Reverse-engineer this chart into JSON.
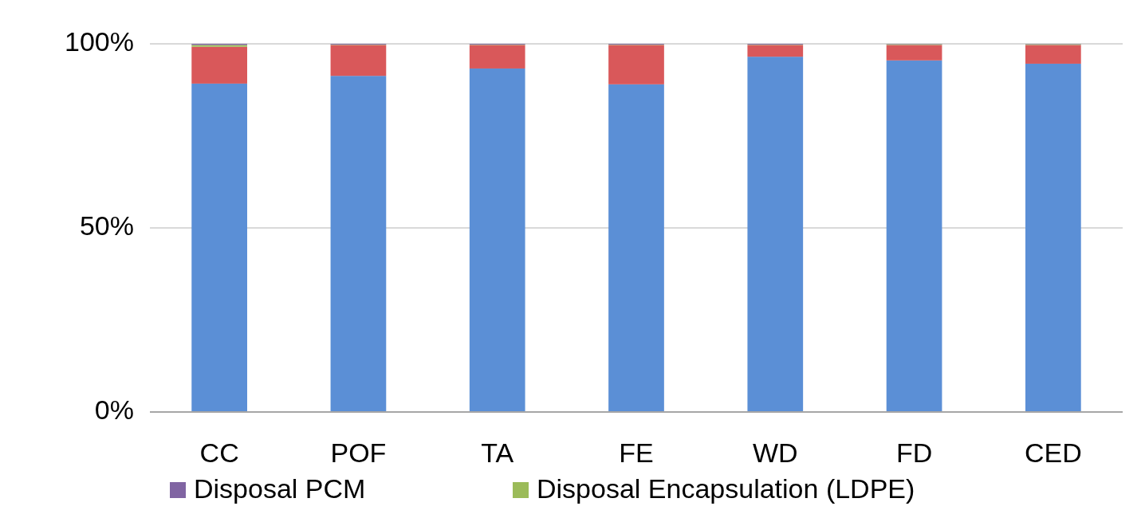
{
  "chart_data": {
    "type": "bar",
    "stacked": true,
    "categories": [
      "CC",
      "POF",
      "TA",
      "FE",
      "WD",
      "FD",
      "CED"
    ],
    "series": [
      {
        "color": "#5b8fd6",
        "values": [
          89.2,
          91.3,
          93.3,
          89.0,
          96.5,
          95.5,
          94.6
        ]
      },
      {
        "color": "#d9585a",
        "values": [
          10.0,
          8.4,
          6.4,
          10.7,
          3.2,
          4.2,
          5.1
        ]
      },
      {
        "name": "Disposal Encapsulation  (LDPE)",
        "color": "#9bbb59",
        "values": [
          0.5,
          0.1,
          0.1,
          0.1,
          0.1,
          0.2,
          0.2
        ]
      },
      {
        "name": "Disposal PCM",
        "color": "#8064a2",
        "values": [
          0.3,
          0.2,
          0.2,
          0.2,
          0.2,
          0.1,
          0.1
        ]
      }
    ],
    "ylim": [
      0,
      100
    ],
    "yticks": [
      {
        "value": 0,
        "label": "0%"
      },
      {
        "value": 50,
        "label": "50%"
      },
      {
        "value": 100,
        "label": "100%"
      }
    ],
    "grid": "y",
    "legend": "bottom"
  }
}
